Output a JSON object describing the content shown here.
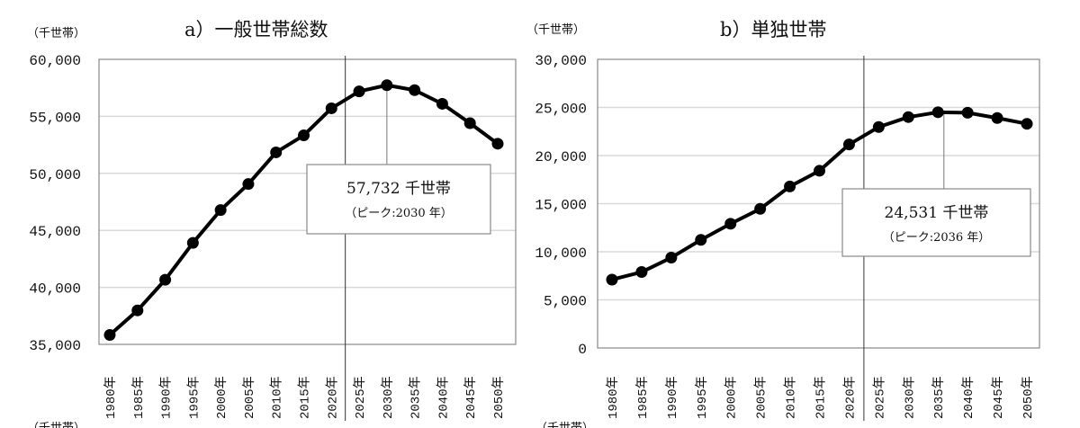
{
  "chart_data": [
    {
      "type": "line",
      "title": "a）一般世帯総数",
      "ylabel": "（千世帯）",
      "ylim": [
        35000,
        60000
      ],
      "yticks": [
        "35,000",
        "40,000",
        "45,000",
        "50,000",
        "55,000",
        "60,000"
      ],
      "categories": [
        "1980年",
        "1985年",
        "1990年",
        "1995年",
        "2000年",
        "2005年",
        "2010年",
        "2015年",
        "2020年",
        "2025年",
        "2030年",
        "2035年",
        "2040年",
        "2045年",
        "2050年"
      ],
      "values": [
        35824,
        37980,
        40670,
        43900,
        46782,
        49063,
        51842,
        53332,
        55705,
        57193,
        57732,
        57300,
        56100,
        54400,
        52600
      ],
      "grid": true,
      "divider_between": [
        "2020年",
        "2025年"
      ],
      "peak_index": 10,
      "annotation": {
        "value": "57,732 千世帯",
        "note": "（ピーク:2030 年）"
      }
    },
    {
      "type": "line",
      "title": "b）単独世帯",
      "ylabel": "（千世帯）",
      "ylim": [
        0,
        30000
      ],
      "yticks": [
        "0",
        "5,000",
        "10,000",
        "15,000",
        "20,000",
        "25,000",
        "30,000"
      ],
      "categories": [
        "1980年",
        "1985年",
        "1990年",
        "1995年",
        "2000年",
        "2005年",
        "2010年",
        "2015年",
        "2020年",
        "2025年",
        "2030年",
        "2035年",
        "2040年",
        "2045年",
        "2050年"
      ],
      "values": [
        7105,
        7895,
        9390,
        11239,
        12911,
        14457,
        16785,
        18418,
        21151,
        22970,
        24000,
        24502,
        24450,
        23900,
        23300
      ],
      "grid": true,
      "divider_between": [
        "2020年",
        "2025年"
      ],
      "peak_index": 11,
      "peak_x_offset": 0.2,
      "annotation": {
        "value": "24,531 千世帯",
        "note": "（ピーク:2036 年）"
      }
    }
  ],
  "footer_unit": "（千世帯）"
}
